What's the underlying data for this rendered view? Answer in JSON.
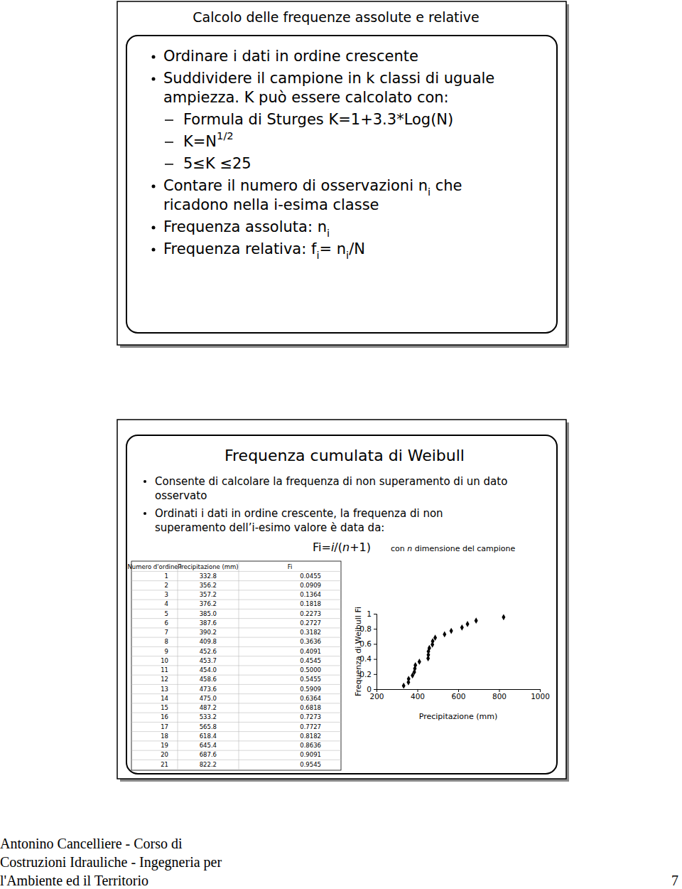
{
  "slide1": {
    "title": "Calcolo delle frequenze assolute e relative",
    "items": [
      {
        "kind": "bullet",
        "lines": [
          [
            {
              "text": "Ordinare i dati in ordine crescente"
            }
          ]
        ]
      },
      {
        "kind": "bullet",
        "lines": [
          [
            {
              "text": "Suddividere il campione in k classi di uguale"
            }
          ],
          [
            {
              "text": "ampiezza. K può essere calcolato con:"
            }
          ]
        ]
      },
      {
        "kind": "dash",
        "lines": [
          [
            {
              "text": "Formula di Sturges K=1+3.3*Log(N)"
            }
          ]
        ]
      },
      {
        "kind": "dash",
        "lines": [
          [
            {
              "text": "K=N"
            },
            {
              "text": "1/2",
              "style": "sup"
            }
          ]
        ]
      },
      {
        "kind": "dash",
        "lines": [
          [
            {
              "text": "5≤K ≤25"
            }
          ]
        ]
      },
      {
        "kind": "bullet",
        "lines": [
          [
            {
              "text": "Contare il numero di osservazioni n"
            },
            {
              "text": "i",
              "style": "sub"
            },
            {
              "text": " che"
            }
          ],
          [
            {
              "text": "ricadono nella i-esima classe"
            }
          ]
        ]
      },
      {
        "kind": "bullet",
        "lines": [
          [
            {
              "text": "Frequenza assoluta: n"
            },
            {
              "text": "i",
              "style": "sub"
            }
          ]
        ]
      },
      {
        "kind": "bullet",
        "lines": [
          [
            {
              "text": "Frequenza relativa: f"
            },
            {
              "text": "i",
              "style": "sub"
            },
            {
              "text": "= n"
            },
            {
              "text": "i",
              "style": "sub"
            },
            {
              "text": "/N"
            }
          ]
        ]
      }
    ]
  },
  "slide2": {
    "title": "Frequenza cumulata di Weibull",
    "items": [
      {
        "kind": "bullet",
        "lines": [
          [
            {
              "text": "Consente di calcolare la frequenza di non superamento di un dato"
            }
          ],
          [
            {
              "text": "osservato"
            }
          ]
        ]
      },
      {
        "kind": "bullet",
        "lines": [
          [
            {
              "text": "Ordinati i dati in ordine crescente, la frequenza di non"
            }
          ],
          [
            {
              "text": "superamento dell’i-esimo valore è data da:"
            }
          ]
        ]
      }
    ],
    "formula": [
      {
        "text": "Fi="
      },
      {
        "text": "i",
        "style": "italic"
      },
      {
        "text": "/("
      },
      {
        "text": "n",
        "style": "italic"
      },
      {
        "text": "+1)"
      }
    ],
    "note": [
      {
        "text": "con "
      },
      {
        "text": "n",
        "style": "italic"
      },
      {
        "text": " dimensione del campione"
      }
    ],
    "table": {
      "header": [
        "Numero d'ordine i",
        "Precipitazione (mm)",
        "Fi"
      ],
      "rows": [
        [
          "1",
          "332.8",
          "0.0455"
        ],
        [
          "2",
          "356.2",
          "0.0909"
        ],
        [
          "3",
          "357.2",
          "0.1364"
        ],
        [
          "4",
          "376.2",
          "0.1818"
        ],
        [
          "5",
          "385.0",
          "0.2273"
        ],
        [
          "6",
          "387.6",
          "0.2727"
        ],
        [
          "7",
          "390.2",
          "0.3182"
        ],
        [
          "8",
          "409.8",
          "0.3636"
        ],
        [
          "9",
          "452.6",
          "0.4091"
        ],
        [
          "10",
          "453.7",
          "0.4545"
        ],
        [
          "11",
          "454.0",
          "0.5000"
        ],
        [
          "12",
          "458.6",
          "0.5455"
        ],
        [
          "13",
          "473.6",
          "0.5909"
        ],
        [
          "14",
          "475.0",
          "0.6364"
        ],
        [
          "15",
          "487.2",
          "0.6818"
        ],
        [
          "16",
          "533.2",
          "0.7273"
        ],
        [
          "17",
          "565.8",
          "0.7727"
        ],
        [
          "18",
          "618.4",
          "0.8182"
        ],
        [
          "19",
          "645.4",
          "0.8636"
        ],
        [
          "20",
          "687.6",
          "0.9091"
        ],
        [
          "21",
          "822.2",
          "0.9545"
        ]
      ]
    }
  },
  "chart_data": {
    "type": "scatter",
    "x_label": "Precipitazione (mm)",
    "y_label": "Frequenza di Weibull Fi",
    "x": [
      332.8,
      356.2,
      357.2,
      376.2,
      385.0,
      387.6,
      390.2,
      409.8,
      452.6,
      453.7,
      454.0,
      458.6,
      473.6,
      475.0,
      487.2,
      533.2,
      565.8,
      618.4,
      645.4,
      687.6,
      822.2
    ],
    "values": [
      0.0455,
      0.0909,
      0.1364,
      0.1818,
      0.2273,
      0.2727,
      0.3182,
      0.3636,
      0.4091,
      0.4545,
      0.5,
      0.5455,
      0.5909,
      0.6364,
      0.6818,
      0.7273,
      0.7727,
      0.8182,
      0.8636,
      0.9091,
      0.9545
    ],
    "xlim": [
      200,
      1000
    ],
    "ylim": [
      0,
      1
    ],
    "xticks": [
      200,
      400,
      600,
      800,
      1000
    ],
    "yticks": [
      0,
      0.2,
      0.4,
      0.6,
      0.8,
      1
    ],
    "color": "#000000",
    "marker": "diamond",
    "grid": false
  },
  "footer": {
    "lines": [
      "Antonino Cancelliere - Corso di",
      "Costruzioni Idrauliche - Ingegneria per",
      "l'Ambiente ed il Territorio"
    ],
    "page": "7"
  }
}
